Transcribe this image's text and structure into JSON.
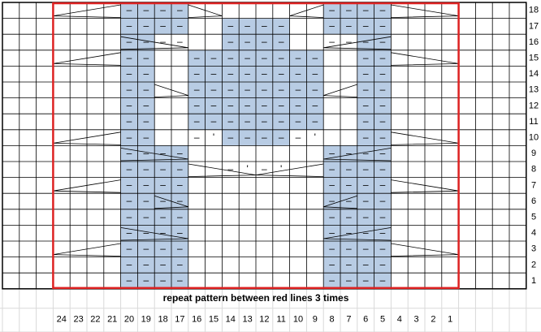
{
  "chart": {
    "caption": "repeat pattern between red lines 3 times",
    "columns": [
      24,
      23,
      22,
      21,
      20,
      19,
      18,
      17,
      16,
      15,
      14,
      13,
      12,
      11,
      10,
      9,
      8,
      7,
      6,
      5,
      4,
      3,
      2,
      1
    ],
    "rows": [
      {
        "number": 18,
        "shaded": [
          20,
          19,
          18,
          17,
          8,
          7,
          6,
          5
        ],
        "symbols": {
          "20": "–",
          "19": "–",
          "18": "–",
          "17": "–",
          "8": "–",
          "7": "–",
          "6": "–",
          "5": "–"
        }
      },
      {
        "number": 17,
        "shaded": [
          20,
          19,
          18,
          17,
          14,
          13,
          12,
          11,
          8,
          7,
          6,
          5
        ],
        "symbols": {
          "20": "–",
          "19": "–",
          "18": "–",
          "17": "–",
          "14": "–",
          "13": "–",
          "12": "–",
          "11": "–",
          "8": "–",
          "7": "–",
          "6": "–",
          "5": "–"
        }
      },
      {
        "number": 16,
        "shaded": [
          20,
          19,
          14,
          13,
          12,
          11,
          6,
          5
        ],
        "symbols": {
          "20": "–",
          "19": "–",
          "18": "–",
          "17": "–",
          "14": "–",
          "13": "–",
          "12": "–",
          "11": "–",
          "8": "–",
          "7": "–",
          "6": "–",
          "5": "–"
        }
      },
      {
        "number": 15,
        "shaded": [
          20,
          19,
          16,
          15,
          14,
          13,
          12,
          11,
          10,
          9,
          6,
          5
        ],
        "symbols": {
          "20": "–",
          "19": "–",
          "16": "–",
          "15": "–",
          "14": "–",
          "13": "–",
          "12": "–",
          "11": "–",
          "10": "–",
          "9": "–",
          "6": "–",
          "5": "–"
        }
      },
      {
        "number": 14,
        "shaded": [
          20,
          19,
          16,
          15,
          14,
          13,
          12,
          11,
          10,
          9,
          6,
          5
        ],
        "symbols": {
          "20": "–",
          "19": "–",
          "16": "–",
          "15": "–",
          "14": "–",
          "13": "–",
          "12": "–",
          "11": "–",
          "10": "–",
          "9": "–",
          "6": "–",
          "5": "–"
        }
      },
      {
        "number": 13,
        "shaded": [
          20,
          19,
          16,
          15,
          14,
          13,
          12,
          11,
          10,
          9,
          6,
          5
        ],
        "symbols": {
          "20": "–",
          "19": "–",
          "16": "–",
          "15": "–",
          "14": "–",
          "13": "–",
          "12": "–",
          "11": "–",
          "10": "–",
          "9": "–",
          "6": "–",
          "5": "–"
        }
      },
      {
        "number": 12,
        "shaded": [
          20,
          19,
          16,
          15,
          14,
          13,
          12,
          11,
          10,
          9,
          6,
          5
        ],
        "symbols": {
          "20": "–",
          "19": "–",
          "16": "–",
          "15": "–",
          "14": "–",
          "13": "–",
          "12": "–",
          "11": "–",
          "10": "–",
          "9": "–",
          "6": "–",
          "5": "–"
        }
      },
      {
        "number": 11,
        "shaded": [
          20,
          19,
          16,
          15,
          14,
          13,
          12,
          11,
          10,
          9,
          6,
          5
        ],
        "symbols": {
          "20": "–",
          "19": "–",
          "16": "–",
          "15": "–",
          "14": "–",
          "13": "–",
          "12": "–",
          "11": "–",
          "10": "–",
          "9": "–",
          "6": "–",
          "5": "–"
        }
      },
      {
        "number": 10,
        "shaded": [
          20,
          19,
          14,
          13,
          12,
          11,
          6,
          5
        ],
        "symbols": {
          "20": "–",
          "19": "–",
          "16": "–",
          "15": "'",
          "14": "–",
          "13": "–",
          "12": "–",
          "11": "–",
          "10": "–",
          "9": "'",
          "6": "–",
          "5": "–"
        }
      },
      {
        "number": 9,
        "shaded": [
          20,
          19,
          18,
          17,
          8,
          7,
          6,
          5
        ],
        "symbols": {
          "20": "–",
          "19": "–",
          "18": "–",
          "17": "–",
          "8": "–",
          "7": "–",
          "6": "–",
          "5": "–"
        }
      },
      {
        "number": 8,
        "shaded": [
          20,
          19,
          18,
          17,
          8,
          7,
          6,
          5
        ],
        "symbols": {
          "20": "–",
          "19": "–",
          "18": "–",
          "17": "–",
          "14": "–",
          "13": "'",
          "12": "–",
          "11": "'",
          "8": "–",
          "7": "–",
          "6": "–",
          "5": "–"
        }
      },
      {
        "number": 7,
        "shaded": [
          20,
          19,
          18,
          17,
          8,
          7,
          6,
          5
        ],
        "symbols": {
          "20": "–",
          "19": "–",
          "18": "–",
          "17": "–",
          "8": "–",
          "7": "–",
          "6": "–",
          "5": "–"
        }
      },
      {
        "number": 6,
        "shaded": [
          20,
          19,
          18,
          17,
          8,
          7,
          6,
          5
        ],
        "symbols": {
          "20": "–",
          "19": "–",
          "18": "–",
          "17": "–",
          "8": "–",
          "7": "–",
          "6": "–",
          "5": "–"
        }
      },
      {
        "number": 5,
        "shaded": [
          20,
          19,
          18,
          17,
          8,
          7,
          6,
          5
        ],
        "symbols": {
          "20": "–",
          "19": "–",
          "18": "–",
          "17": "–",
          "8": "–",
          "7": "–",
          "6": "–",
          "5": "–"
        }
      },
      {
        "number": 4,
        "shaded": [
          20,
          19,
          18,
          17,
          8,
          7,
          6,
          5
        ],
        "symbols": {
          "20": "–",
          "19": "–",
          "18": "–",
          "17": "–",
          "8": "–",
          "7": "–",
          "6": "–",
          "5": "–"
        }
      },
      {
        "number": 3,
        "shaded": [
          20,
          19,
          18,
          17,
          8,
          7,
          6,
          5
        ],
        "symbols": {
          "20": "–",
          "19": "–",
          "18": "–",
          "17": "–",
          "8": "–",
          "7": "–",
          "6": "–",
          "5": "–"
        }
      },
      {
        "number": 2,
        "shaded": [
          20,
          19,
          18,
          17,
          8,
          7,
          6,
          5
        ],
        "symbols": {
          "20": "–",
          "19": "–",
          "18": "–",
          "17": "–",
          "8": "–",
          "7": "–",
          "6": "–",
          "5": "–"
        }
      },
      {
        "number": 1,
        "shaded": [
          20,
          19,
          18,
          17,
          8,
          7,
          6,
          5
        ],
        "symbols": {
          "20": "–",
          "19": "–",
          "18": "–",
          "17": "–",
          "8": "–",
          "7": "–",
          "6": "–",
          "5": "–"
        }
      }
    ]
  }
}
